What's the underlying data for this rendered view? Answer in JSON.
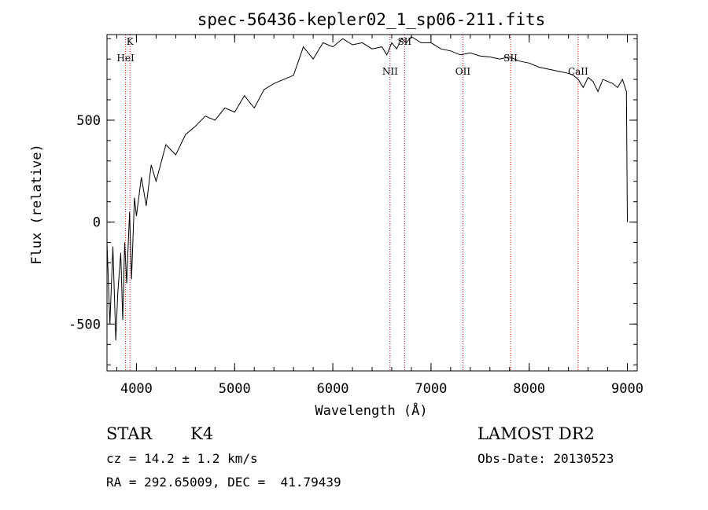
{
  "chart_data": {
    "type": "line",
    "title": "spec-56436-kepler02_1_sp06-211.fits",
    "xlabel": "Wavelength (Å)",
    "ylabel": "Flux (relative)",
    "xlim": [
      3700,
      9100
    ],
    "ylim": [
      -730,
      920
    ],
    "x_ticks": [
      4000,
      5000,
      6000,
      7000,
      8000,
      9000
    ],
    "y_ticks": [
      -500,
      0,
      500
    ],
    "grid": false,
    "series": [
      {
        "x": [
          3700,
          3730,
          3760,
          3790,
          3810,
          3840,
          3860,
          3880,
          3900,
          3930,
          3950,
          3980,
          4000,
          4050,
          4100,
          4150,
          4200,
          4300,
          4400,
          4500,
          4600,
          4700,
          4800,
          4900,
          5000,
          5100,
          5200,
          5300,
          5400,
          5500,
          5600,
          5700,
          5800,
          5900,
          6000,
          6100,
          6200,
          6300,
          6400,
          6500,
          6550,
          6600,
          6650,
          6700,
          6750,
          6800,
          6900,
          7000,
          7100,
          7200,
          7300,
          7400,
          7500,
          7600,
          7700,
          7800,
          7900,
          8000,
          8100,
          8200,
          8300,
          8400,
          8450,
          8500,
          8550,
          8600,
          8650,
          8700,
          8750,
          8800,
          8850,
          8900,
          8950,
          8990,
          9000
        ],
        "y": [
          -100,
          -500,
          -120,
          -580,
          -350,
          -150,
          -480,
          -100,
          -300,
          50,
          -280,
          120,
          30,
          220,
          80,
          280,
          200,
          380,
          330,
          430,
          470,
          520,
          500,
          560,
          540,
          620,
          560,
          650,
          680,
          700,
          720,
          860,
          800,
          880,
          860,
          900,
          870,
          880,
          850,
          860,
          820,
          880,
          850,
          900,
          880,
          910,
          880,
          880,
          850,
          840,
          820,
          830,
          815,
          810,
          800,
          810,
          790,
          780,
          760,
          750,
          740,
          730,
          720,
          700,
          660,
          710,
          690,
          640,
          700,
          690,
          680,
          660,
          700,
          640,
          0
        ]
      }
    ],
    "lines": [
      {
        "label": "K",
        "wavelength": 3934
      },
      {
        "label": "HeI",
        "wavelength": 3889
      },
      {
        "label": "NII",
        "wavelength": 6583
      },
      {
        "label": "SII",
        "wavelength": 6731
      },
      {
        "label": "OII",
        "wavelength": 7325
      },
      {
        "label": "SII",
        "wavelength": 7810
      },
      {
        "label": "CaII",
        "wavelength": 8498
      }
    ]
  },
  "info": {
    "object_class": "STAR",
    "subclass": "K4",
    "survey": "LAMOST DR2",
    "cz": "cz = 14.2 ± 1.2 km/s",
    "obs_date": "Obs-Date: 20130523",
    "coords": "RA = 292.65009, DEC =  41.79439"
  },
  "colors": {
    "spectrum": "#000000",
    "line_markers": "#cc0000",
    "axes": "#000000"
  }
}
